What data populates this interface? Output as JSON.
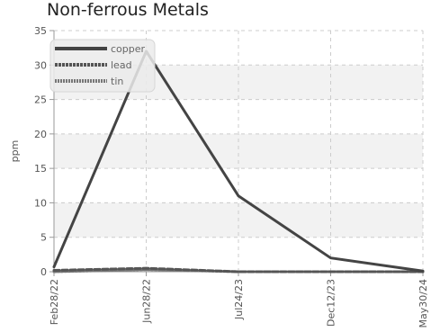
{
  "chart_data": {
    "type": "line",
    "title": "Non-ferrous Metals",
    "xlabel": "",
    "ylabel": "ppm",
    "x": [
      "Feb28/22",
      "Jun28/22",
      "Jul24/23",
      "Dec12/23",
      "May30/24"
    ],
    "ylim": [
      0,
      35
    ],
    "yticks": [
      0,
      5,
      10,
      15,
      20,
      25,
      30,
      35
    ],
    "grid": true,
    "legend_position": "top-left",
    "series": [
      {
        "name": "copper",
        "style": "solid",
        "color": "#444444",
        "values": [
          0.7,
          32.0,
          11.0,
          2.0,
          0.1
        ]
      },
      {
        "name": "lead",
        "style": "dashed",
        "color": "#555555",
        "values": [
          0.2,
          0.5,
          0.0,
          0.0,
          0.0
        ]
      },
      {
        "name": "tin",
        "style": "dotted",
        "color": "#777777",
        "values": [
          0.0,
          0.3,
          0.0,
          0.0,
          0.0
        ]
      }
    ]
  }
}
